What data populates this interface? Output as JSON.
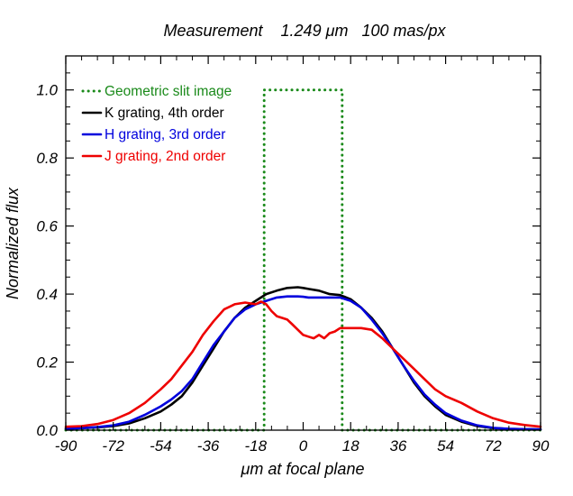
{
  "chart_data": {
    "type": "line",
    "title": "Measurement    1.249 μm   100 mas/px",
    "xlabel": "μm at focal plane",
    "ylabel": "Normalized flux",
    "xlim": [
      -90,
      90
    ],
    "ylim": [
      0,
      1.1
    ],
    "xticks": [
      -90,
      -72,
      -54,
      -36,
      -18,
      0,
      18,
      36,
      54,
      72,
      90
    ],
    "xtick_labels": [
      "-90",
      "-72",
      "-54",
      "-36",
      "-18",
      "0",
      "18",
      "36",
      "54",
      "72",
      "90"
    ],
    "yticks": [
      0,
      0.2,
      0.4,
      0.6,
      0.8,
      1.0
    ],
    "ytick_labels": [
      "0.0",
      "0.2",
      "0.4",
      "0.6",
      "0.8",
      "1.0"
    ],
    "grid": false,
    "legend_position": "top-left",
    "series": [
      {
        "name": "Geometric slit image",
        "color": "#1a8a1a",
        "style": "dotted",
        "x": [
          -90,
          -14.8,
          -14.8,
          14.8,
          14.8,
          90
        ],
        "y": [
          0,
          0,
          1.0,
          1.0,
          0,
          0
        ]
      },
      {
        "name": "K grating, 4th order",
        "color": "#000000",
        "style": "solid",
        "x": [
          -90,
          -84,
          -78,
          -72,
          -66,
          -60,
          -54,
          -50,
          -46,
          -42,
          -38,
          -34,
          -30,
          -26,
          -22,
          -18,
          -14,
          -10,
          -6,
          -2,
          0,
          2,
          6,
          10,
          14,
          18,
          22,
          26,
          30,
          34,
          38,
          42,
          46,
          50,
          54,
          60,
          66,
          72,
          78,
          84,
          90
        ],
        "y": [
          0.005,
          0.006,
          0.008,
          0.012,
          0.02,
          0.035,
          0.055,
          0.075,
          0.1,
          0.14,
          0.19,
          0.24,
          0.29,
          0.33,
          0.36,
          0.38,
          0.4,
          0.41,
          0.418,
          0.42,
          0.418,
          0.415,
          0.41,
          0.4,
          0.397,
          0.385,
          0.36,
          0.33,
          0.29,
          0.24,
          0.19,
          0.14,
          0.1,
          0.07,
          0.045,
          0.025,
          0.012,
          0.006,
          0.004,
          0.003,
          0.002
        ]
      },
      {
        "name": "H grating, 3rd order",
        "color": "#0000dd",
        "style": "solid",
        "x": [
          -90,
          -84,
          -78,
          -72,
          -66,
          -60,
          -54,
          -50,
          -46,
          -42,
          -38,
          -34,
          -30,
          -26,
          -22,
          -18,
          -14,
          -10,
          -6,
          -2,
          0,
          2,
          6,
          10,
          14,
          18,
          22,
          26,
          30,
          34,
          38,
          42,
          46,
          50,
          54,
          60,
          66,
          72,
          78,
          84,
          90
        ],
        "y": [
          0.004,
          0.006,
          0.009,
          0.014,
          0.025,
          0.045,
          0.07,
          0.09,
          0.115,
          0.15,
          0.2,
          0.25,
          0.29,
          0.33,
          0.355,
          0.37,
          0.38,
          0.39,
          0.393,
          0.393,
          0.392,
          0.39,
          0.39,
          0.39,
          0.39,
          0.38,
          0.36,
          0.325,
          0.285,
          0.24,
          0.19,
          0.145,
          0.105,
          0.075,
          0.05,
          0.028,
          0.014,
          0.007,
          0.004,
          0.003,
          0.002
        ]
      },
      {
        "name": "J grating, 2nd order",
        "color": "#ee0000",
        "style": "solid",
        "x": [
          -90,
          -84,
          -78,
          -72,
          -66,
          -60,
          -54,
          -50,
          -46,
          -42,
          -38,
          -34,
          -30,
          -26,
          -22,
          -18,
          -16,
          -14,
          -12,
          -10,
          -8,
          -6,
          -4,
          -2,
          0,
          2,
          4,
          6,
          8,
          10,
          12,
          14,
          18,
          22,
          26,
          30,
          34,
          38,
          42,
          46,
          50,
          54,
          60,
          66,
          72,
          78,
          84,
          90
        ],
        "y": [
          0.01,
          0.012,
          0.018,
          0.03,
          0.05,
          0.08,
          0.12,
          0.15,
          0.19,
          0.23,
          0.28,
          0.32,
          0.355,
          0.37,
          0.375,
          0.37,
          0.378,
          0.37,
          0.35,
          0.335,
          0.33,
          0.325,
          0.31,
          0.295,
          0.28,
          0.275,
          0.27,
          0.28,
          0.27,
          0.285,
          0.29,
          0.3,
          0.3,
          0.3,
          0.295,
          0.27,
          0.24,
          0.21,
          0.18,
          0.15,
          0.12,
          0.1,
          0.08,
          0.055,
          0.035,
          0.022,
          0.015,
          0.01
        ]
      }
    ]
  }
}
